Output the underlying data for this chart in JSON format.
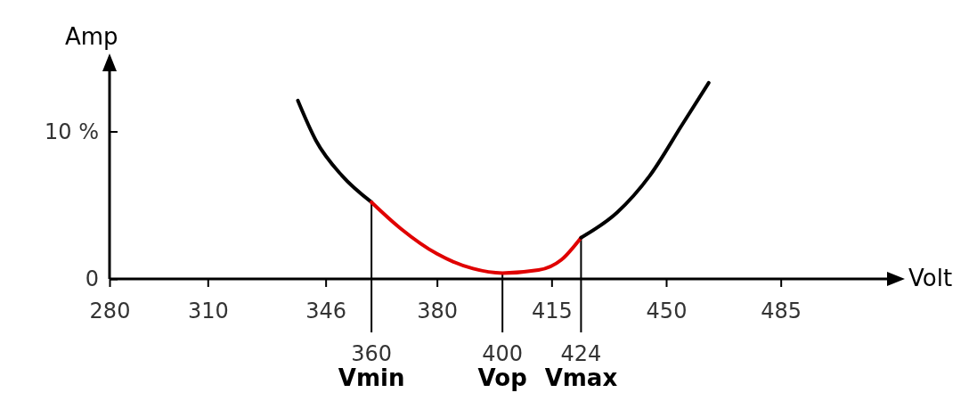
{
  "chart_data": {
    "type": "line",
    "xlabel": "Volt",
    "ylabel": "Amp",
    "xlim": [
      280,
      518
    ],
    "xticks": [
      280,
      310,
      346,
      380,
      415,
      450,
      485
    ],
    "ylim": [
      0,
      14.2
    ],
    "yticks": [
      0,
      {
        "value": 10,
        "label": "10 %"
      }
    ],
    "series": [
      {
        "color": "#000000",
        "x": [
          337.5,
          343,
          351,
          360
        ],
        "values": [
          12.1,
          9.4,
          7.0,
          5.2
        ]
      },
      {
        "color": "#e00000",
        "x": [
          360,
          369,
          380,
          391,
          400,
          411,
          418,
          424
        ],
        "values": [
          5.2,
          3.4,
          1.7,
          0.7,
          0.4,
          0.6,
          1.3,
          2.8
        ]
      },
      {
        "color": "#000000",
        "x": [
          424,
          435,
          445,
          455,
          463
        ],
        "values": [
          2.8,
          4.5,
          7.0,
          10.5,
          13.3
        ]
      }
    ],
    "ref_lines": [
      {
        "axis": "x",
        "value": 360,
        "label": "Vmin"
      },
      {
        "axis": "x",
        "value": 400,
        "label": "Vop"
      },
      {
        "axis": "x",
        "value": 424,
        "label": "Vmax"
      }
    ],
    "annotations": [
      "360",
      "400",
      "424"
    ],
    "grid": false,
    "marker": "none",
    "line_style": "solid"
  }
}
